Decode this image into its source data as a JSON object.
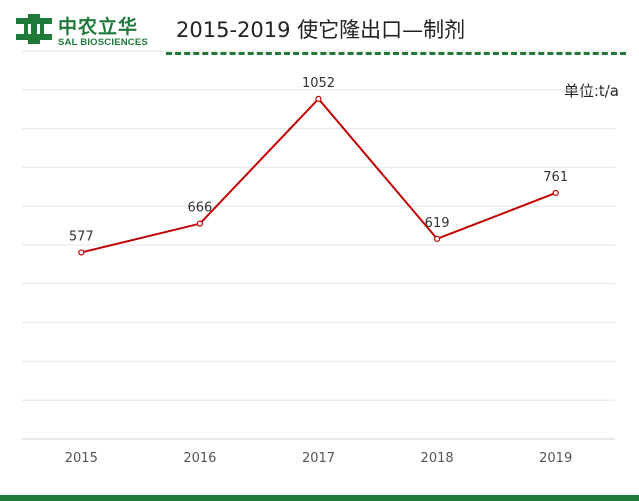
{
  "header": {
    "logo_cn": "中农立华",
    "logo_en": "SAL BIOSCIENCES",
    "title": "2015-2019 使它隆出口—制剂",
    "brand_color": "#1f7a3a"
  },
  "chart_data": {
    "type": "line",
    "title": "2015-2019 使它隆出口—制剂",
    "unit_label": "单位:t/a",
    "xlabel": "",
    "ylabel": "",
    "categories": [
      "2015",
      "2016",
      "2017",
      "2018",
      "2019"
    ],
    "series": [
      {
        "values": [
          577,
          666,
          1052,
          619,
          761
        ],
        "color": "#c00000"
      }
    ],
    "data_labels": [
      "577",
      "666",
      "1052",
      "619",
      "761"
    ],
    "ylim": [
      0,
      1200
    ],
    "grid": true,
    "legend": "none"
  }
}
